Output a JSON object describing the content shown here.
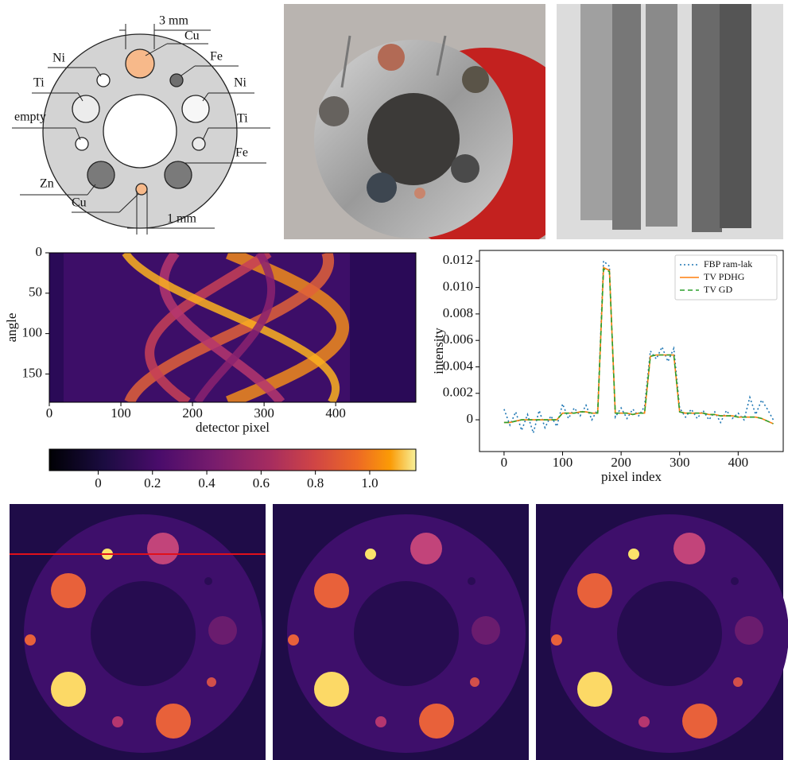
{
  "diagram": {
    "labels": [
      "3 mm",
      "Cu",
      "Ni",
      "Fe",
      "Ti",
      "Ni",
      "empty",
      "Ti",
      "Zn",
      "Fe",
      "Cu",
      "1 mm"
    ]
  },
  "chart_data": [
    {
      "type": "heatmap",
      "xlabel": "detector pixel",
      "ylabel": "angle",
      "xlim": [
        0,
        512
      ],
      "ylim": [
        0,
        185
      ],
      "invert_y": true,
      "xticks": [
        0,
        100,
        200,
        300,
        400
      ],
      "yticks": [
        0,
        50,
        100,
        150
      ],
      "colorbar": {
        "lim": [
          -0.18,
          1.17
        ],
        "ticks": [
          0,
          0.2,
          0.4,
          0.6,
          0.8,
          {
            "value": 1,
            "label": "1.0"
          }
        ]
      }
    },
    {
      "type": "line",
      "xlabel": "pixel index",
      "ylabel": "intensity",
      "legend": "upper right",
      "x": [
        0,
        10,
        20,
        30,
        40,
        50,
        60,
        70,
        80,
        90,
        100,
        110,
        120,
        130,
        140,
        150,
        160,
        170,
        180,
        190,
        200,
        210,
        220,
        230,
        240,
        250,
        260,
        270,
        280,
        290,
        300,
        310,
        320,
        330,
        340,
        350,
        360,
        370,
        380,
        390,
        400,
        410,
        420,
        430,
        440,
        450,
        460
      ],
      "xlim": [
        -42,
        477
      ],
      "ylim": [
        -0.0024,
        0.0128
      ],
      "xticks": [
        0,
        100,
        200,
        300,
        400
      ],
      "yticks": [
        0,
        0.002,
        0.004,
        0.006,
        0.008,
        {
          "value": 0.01,
          "label": "0.010"
        },
        0.012
      ],
      "series": [
        {
          "name": "FBP ram-lak",
          "color": "#1f77b4",
          "style": "dotted",
          "values": [
            0.0008,
            -0.0004,
            0.0006,
            -0.0008,
            0.0004,
            -0.001,
            0.0007,
            -0.0006,
            0.0003,
            -0.0005,
            0.0012,
            0.0001,
            0.0009,
            0.0003,
            0.0011,
            0,
            0.0008,
            0.012,
            0.0116,
            0.0002,
            0.0009,
            0.0001,
            0.0008,
            0.0003,
            0.001,
            0.0052,
            0.0046,
            0.0055,
            0.0044,
            0.0054,
            0.0009,
            0.0002,
            0.0008,
            0.0001,
            0.0007,
            0,
            0.0006,
            -0.0002,
            0.0007,
            0.0001,
            0.0005,
            0,
            0.0017,
            0.0004,
            0.0015,
            0.0008,
            0
          ]
        },
        {
          "name": "TV PDHG",
          "color": "#ff7f0e",
          "style": "solid",
          "values": [
            -0.0002,
            -0.0002,
            -0.0001,
            0,
            0,
            0,
            0,
            0,
            0,
            0,
            0.0005,
            0.0005,
            0.0005,
            0.0006,
            0.0006,
            0.0005,
            0.0005,
            0.0115,
            0.0113,
            0.0005,
            0.0005,
            0.0005,
            0.0004,
            0.0005,
            0.0005,
            0.0048,
            0.0049,
            0.0049,
            0.0049,
            0.0049,
            0.0006,
            0.0005,
            0.0005,
            0.0005,
            0.0005,
            0.0004,
            0.0004,
            0.0003,
            0.0003,
            0.0003,
            0.0002,
            0.0002,
            0.0002,
            0.0002,
            0.0001,
            -0.0001,
            -0.0003
          ]
        },
        {
          "name": "TV GD",
          "color": "#2ca02c",
          "style": "dashed",
          "values": [
            -0.0002,
            -0.0002,
            -0.0001,
            0,
            0,
            0,
            0,
            0,
            0,
            0,
            0.0005,
            0.0005,
            0.0005,
            0.0006,
            0.0006,
            0.0005,
            0.0005,
            0.0114,
            0.0112,
            0.0005,
            0.0005,
            0.0005,
            0.0004,
            0.0005,
            0.0005,
            0.0048,
            0.0049,
            0.0049,
            0.0049,
            0.0049,
            0.0006,
            0.0005,
            0.0005,
            0.0005,
            0.0005,
            0.0004,
            0.0004,
            0.0003,
            0.0003,
            0.0003,
            0.0002,
            0.0002,
            0.0002,
            0.0002,
            0.0001,
            -0.0001,
            -0.0003
          ]
        }
      ]
    }
  ]
}
